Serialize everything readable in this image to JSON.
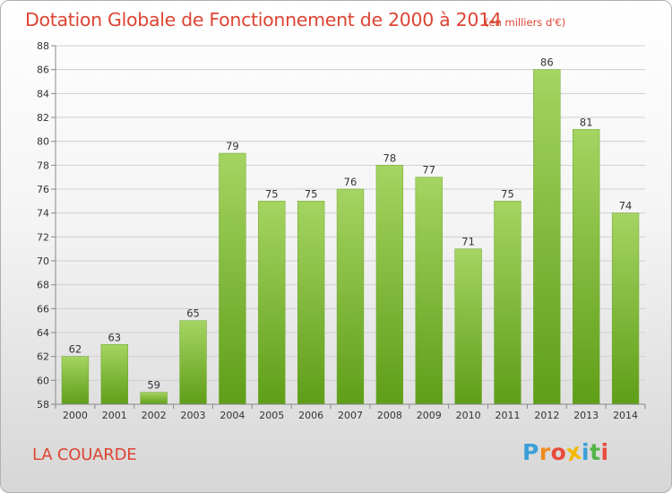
{
  "header": {
    "title": "Dotation Globale de Fonctionnement de 2000 à 2014",
    "unit": "(en milliers d'€)"
  },
  "footer": {
    "commune": "LA COUARDE",
    "logo_letters": [
      "P",
      "r",
      "o",
      "x",
      "i",
      "t",
      "i"
    ],
    "logo_colors": [
      "#3a9fd8",
      "#f08c1e",
      "#e94b3c",
      "#f5b800",
      "#3a9fd8",
      "#55b548",
      "#e94b3c"
    ]
  },
  "colors": {
    "bar_top": "#a5d462",
    "bar_bottom": "#5f9e18",
    "grid": "#cfcfcf",
    "axis": "#888888"
  },
  "chart_data": {
    "type": "bar",
    "title": "Dotation Globale de Fonctionnement de 2000 à 2014",
    "subtitle": "(en milliers d'€)",
    "categories": [
      "2000",
      "2001",
      "2002",
      "2003",
      "2004",
      "2005",
      "2006",
      "2007",
      "2008",
      "2009",
      "2010",
      "2011",
      "2012",
      "2013",
      "2014"
    ],
    "values": [
      62,
      63,
      59,
      65,
      79,
      75,
      75,
      76,
      78,
      77,
      71,
      75,
      86,
      81,
      74
    ],
    "ylim": [
      58,
      88
    ],
    "ytick_step": 2,
    "yticks": [
      "58",
      "60",
      "62",
      "64",
      "66",
      "68",
      "70",
      "72",
      "74",
      "76",
      "78",
      "80",
      "82",
      "84",
      "86",
      "88"
    ],
    "grid": true,
    "xlabel": "",
    "ylabel": ""
  }
}
